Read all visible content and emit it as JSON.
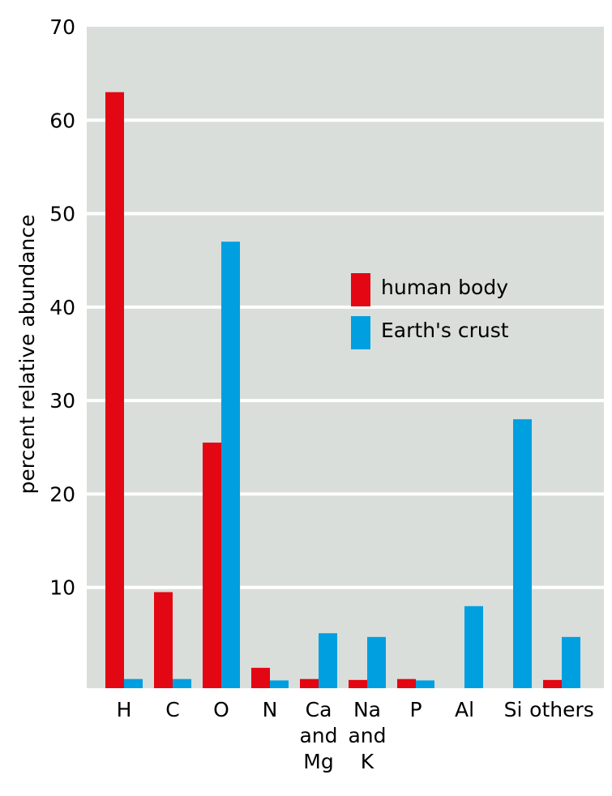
{
  "chart_data": {
    "type": "bar",
    "ylabel": "percent relative abundance",
    "xlabel": "",
    "ylim": [
      0,
      70
    ],
    "yticks": [
      10,
      20,
      30,
      40,
      50,
      60,
      70
    ],
    "grid": true,
    "legend_position": "right-middle",
    "categories": [
      [
        "H"
      ],
      [
        "C"
      ],
      [
        "O"
      ],
      [
        "N"
      ],
      [
        "Ca",
        "and",
        "Mg"
      ],
      [
        "Na",
        "and",
        "K"
      ],
      [
        "P"
      ],
      [
        "Al"
      ],
      [
        "Si"
      ],
      [
        "others"
      ]
    ],
    "series": [
      {
        "name": "human body",
        "color": "#e30613",
        "values": [
          63,
          9.5,
          25.5,
          1.4,
          0.2,
          0.1,
          0.2,
          0,
          0,
          0.1
        ]
      },
      {
        "name": "Earth's crust",
        "color": "#009fe0",
        "values": [
          0.2,
          0.2,
          47,
          0.05,
          5.1,
          4.7,
          0.05,
          8,
          28,
          4.7
        ]
      }
    ],
    "background": "#d9dedb"
  }
}
